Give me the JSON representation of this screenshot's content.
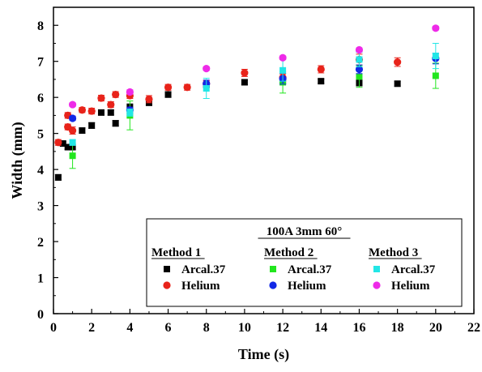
{
  "chart_data": {
    "type": "scatter",
    "xlabel": "Time (s)",
    "ylabel": "Width (mm)",
    "xlim": [
      0,
      22
    ],
    "ylim": [
      0,
      8.5
    ],
    "xticks": [
      0,
      2,
      4,
      6,
      8,
      10,
      12,
      14,
      16,
      18,
      20,
      22
    ],
    "yticks": [
      0,
      1,
      2,
      3,
      4,
      5,
      6,
      7,
      8
    ],
    "grid": false,
    "legend": {
      "title": "100A 3mm 60°",
      "placement": "lower-right",
      "groups": [
        "Method 1",
        "Method 2",
        "Method 3"
      ]
    },
    "series": [
      {
        "name": "Arcal.37",
        "group": "Method 1",
        "marker": "square",
        "color": "#000000",
        "points": [
          {
            "x": 0.25,
            "y": 3.78,
            "err": 0.08
          },
          {
            "x": 0.5,
            "y": 4.72,
            "err": 0.05
          },
          {
            "x": 0.75,
            "y": 4.62,
            "err": 0.06
          },
          {
            "x": 1.0,
            "y": 4.62,
            "err": 0.06
          },
          {
            "x": 1.5,
            "y": 5.08,
            "err": 0.07
          },
          {
            "x": 2.0,
            "y": 5.22,
            "err": 0.08
          },
          {
            "x": 2.5,
            "y": 5.58,
            "err": 0.07
          },
          {
            "x": 3.0,
            "y": 5.58,
            "err": 0.07
          },
          {
            "x": 3.25,
            "y": 5.28,
            "err": 0.08
          },
          {
            "x": 4.0,
            "y": 5.72,
            "err": 0.1
          },
          {
            "x": 5.0,
            "y": 5.85,
            "err": 0.07
          },
          {
            "x": 6.0,
            "y": 6.08,
            "err": 0.08
          },
          {
            "x": 8.0,
            "y": 6.35,
            "err": 0.06
          },
          {
            "x": 10.0,
            "y": 6.42,
            "err": 0.07
          },
          {
            "x": 12.0,
            "y": 6.45,
            "err": 0.08
          },
          {
            "x": 14.0,
            "y": 6.45,
            "err": 0.06
          },
          {
            "x": 16.0,
            "y": 6.4,
            "err": 0.08
          },
          {
            "x": 18.0,
            "y": 6.38,
            "err": 0.07
          }
        ]
      },
      {
        "name": "Helium",
        "group": "Method 1",
        "marker": "circle",
        "color": "#e8231a",
        "points": [
          {
            "x": 0.25,
            "y": 4.75,
            "err": 0.08
          },
          {
            "x": 0.75,
            "y": 5.5,
            "err": 0.08
          },
          {
            "x": 0.75,
            "y": 5.18,
            "err": 0.08
          },
          {
            "x": 1.0,
            "y": 5.08,
            "err": 0.1
          },
          {
            "x": 1.5,
            "y": 5.65,
            "err": 0.07
          },
          {
            "x": 2.0,
            "y": 5.62,
            "err": 0.08
          },
          {
            "x": 2.5,
            "y": 5.98,
            "err": 0.08
          },
          {
            "x": 3.0,
            "y": 5.8,
            "err": 0.08
          },
          {
            "x": 3.25,
            "y": 6.08,
            "err": 0.08
          },
          {
            "x": 4.0,
            "y": 6.05,
            "err": 0.08
          },
          {
            "x": 5.0,
            "y": 5.95,
            "err": 0.1
          },
          {
            "x": 6.0,
            "y": 6.28,
            "err": 0.08
          },
          {
            "x": 7.0,
            "y": 6.28,
            "err": 0.08
          },
          {
            "x": 8.0,
            "y": 6.38,
            "err": 0.08
          },
          {
            "x": 10.0,
            "y": 6.68,
            "err": 0.1
          },
          {
            "x": 12.0,
            "y": 6.55,
            "err": 0.1
          },
          {
            "x": 14.0,
            "y": 6.78,
            "err": 0.1
          },
          {
            "x": 16.0,
            "y": 7.05,
            "err": 0.15
          },
          {
            "x": 18.0,
            "y": 6.98,
            "err": 0.12
          }
        ]
      },
      {
        "name": "Arcal.37",
        "group": "Method 2",
        "marker": "square",
        "color": "#22e61e",
        "points": [
          {
            "x": 1.0,
            "y": 4.38,
            "err": 0.35
          },
          {
            "x": 4.0,
            "y": 5.5,
            "err": 0.4
          },
          {
            "x": 12.0,
            "y": 6.42,
            "err": 0.3
          },
          {
            "x": 16.0,
            "y": 6.58,
            "err": 0.3
          },
          {
            "x": 20.0,
            "y": 6.6,
            "err": 0.35
          }
        ]
      },
      {
        "name": "Helium",
        "group": "Method 2",
        "marker": "circle",
        "color": "#1228e6",
        "points": [
          {
            "x": 1.0,
            "y": 5.42,
            "err": 0.06
          },
          {
            "x": 4.0,
            "y": 5.65,
            "err": 0.08
          },
          {
            "x": 8.0,
            "y": 6.38,
            "err": 0.1
          },
          {
            "x": 12.0,
            "y": 6.52,
            "err": 0.15
          },
          {
            "x": 16.0,
            "y": 6.78,
            "err": 0.12
          },
          {
            "x": 20.0,
            "y": 7.08,
            "err": 0.15
          }
        ]
      },
      {
        "name": "Arcal.37",
        "group": "Method 3",
        "marker": "square",
        "color": "#22e6e6",
        "points": [
          {
            "x": 1.0,
            "y": 4.75,
            "err": 0.08
          },
          {
            "x": 4.0,
            "y": 5.58,
            "err": 0.1
          },
          {
            "x": 8.0,
            "y": 6.25,
            "err": 0.28
          },
          {
            "x": 12.0,
            "y": 6.75,
            "err": 0.3
          },
          {
            "x": 16.0,
            "y": 7.05,
            "err": 0.2
          },
          {
            "x": 20.0,
            "y": 7.15,
            "err": 0.35
          }
        ]
      },
      {
        "name": "Helium",
        "group": "Method 3",
        "marker": "circle",
        "color": "#ee2ae8",
        "points": [
          {
            "x": 1.0,
            "y": 5.8,
            "err": 0.05
          },
          {
            "x": 4.0,
            "y": 6.15,
            "err": 0.06
          },
          {
            "x": 8.0,
            "y": 6.8,
            "err": 0.05
          },
          {
            "x": 12.0,
            "y": 7.1,
            "err": 0.05
          },
          {
            "x": 16.0,
            "y": 7.32,
            "err": 0.05
          },
          {
            "x": 20.0,
            "y": 7.92,
            "err": 0.05
          }
        ]
      }
    ]
  }
}
